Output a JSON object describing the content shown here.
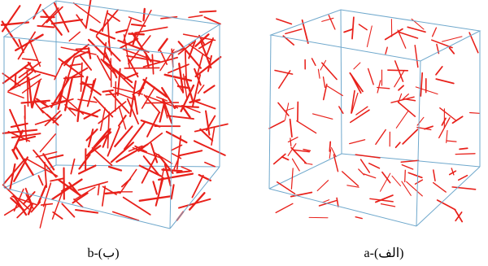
{
  "figure": {
    "panels": [
      {
        "id": "b",
        "caption": "b-(ب)",
        "fiber_density": "high",
        "fiber_count_estimate": 300,
        "fiber_color": "#e8201a",
        "box_color": "#6fa8cc"
      },
      {
        "id": "a",
        "caption": "a-(الف)",
        "fiber_density": "low",
        "fiber_count_estimate": 140,
        "fiber_color": "#e8201a",
        "box_color": "#6fa8cc"
      }
    ]
  }
}
